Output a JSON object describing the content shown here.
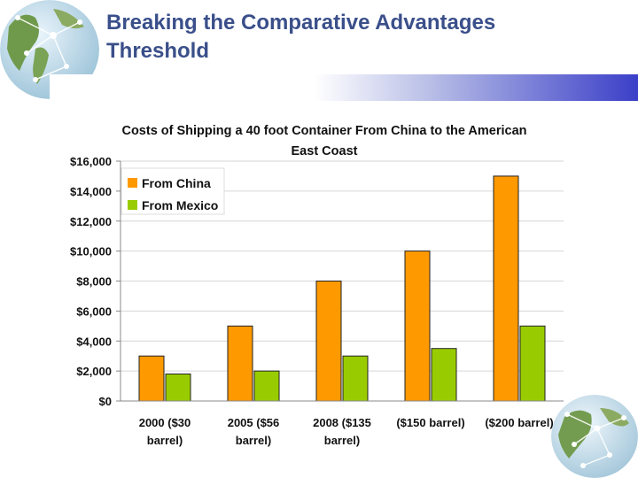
{
  "slide": {
    "title_line1": "Breaking the Comparative Advantages",
    "title_line2": "Threshold"
  },
  "chart_data": {
    "type": "bar",
    "title_line1": "Costs of Shipping a 40 foot Container From China to the American",
    "title_line2": "East Coast",
    "categories": [
      [
        "2000 ($30",
        "barrel)"
      ],
      [
        "2005 ($56",
        "barrel)"
      ],
      [
        "2008 ($135",
        "barrel)"
      ],
      [
        "($150 barrel)"
      ],
      [
        "($200 barrel)"
      ]
    ],
    "series": [
      {
        "name": "From China",
        "color": "#ff9900",
        "values": [
          3000,
          5000,
          8000,
          10000,
          15000
        ]
      },
      {
        "name": "From Mexico",
        "color": "#99cc00",
        "values": [
          1800,
          2000,
          3000,
          3500,
          5000
        ]
      }
    ],
    "y_ticks": [
      "$0",
      "$2,000",
      "$4,000",
      "$6,000",
      "$8,000",
      "$10,000",
      "$12,000",
      "$14,000",
      "$16,000"
    ],
    "ylim": [
      0,
      16000
    ],
    "grid": true,
    "legend_position": "top-left"
  }
}
